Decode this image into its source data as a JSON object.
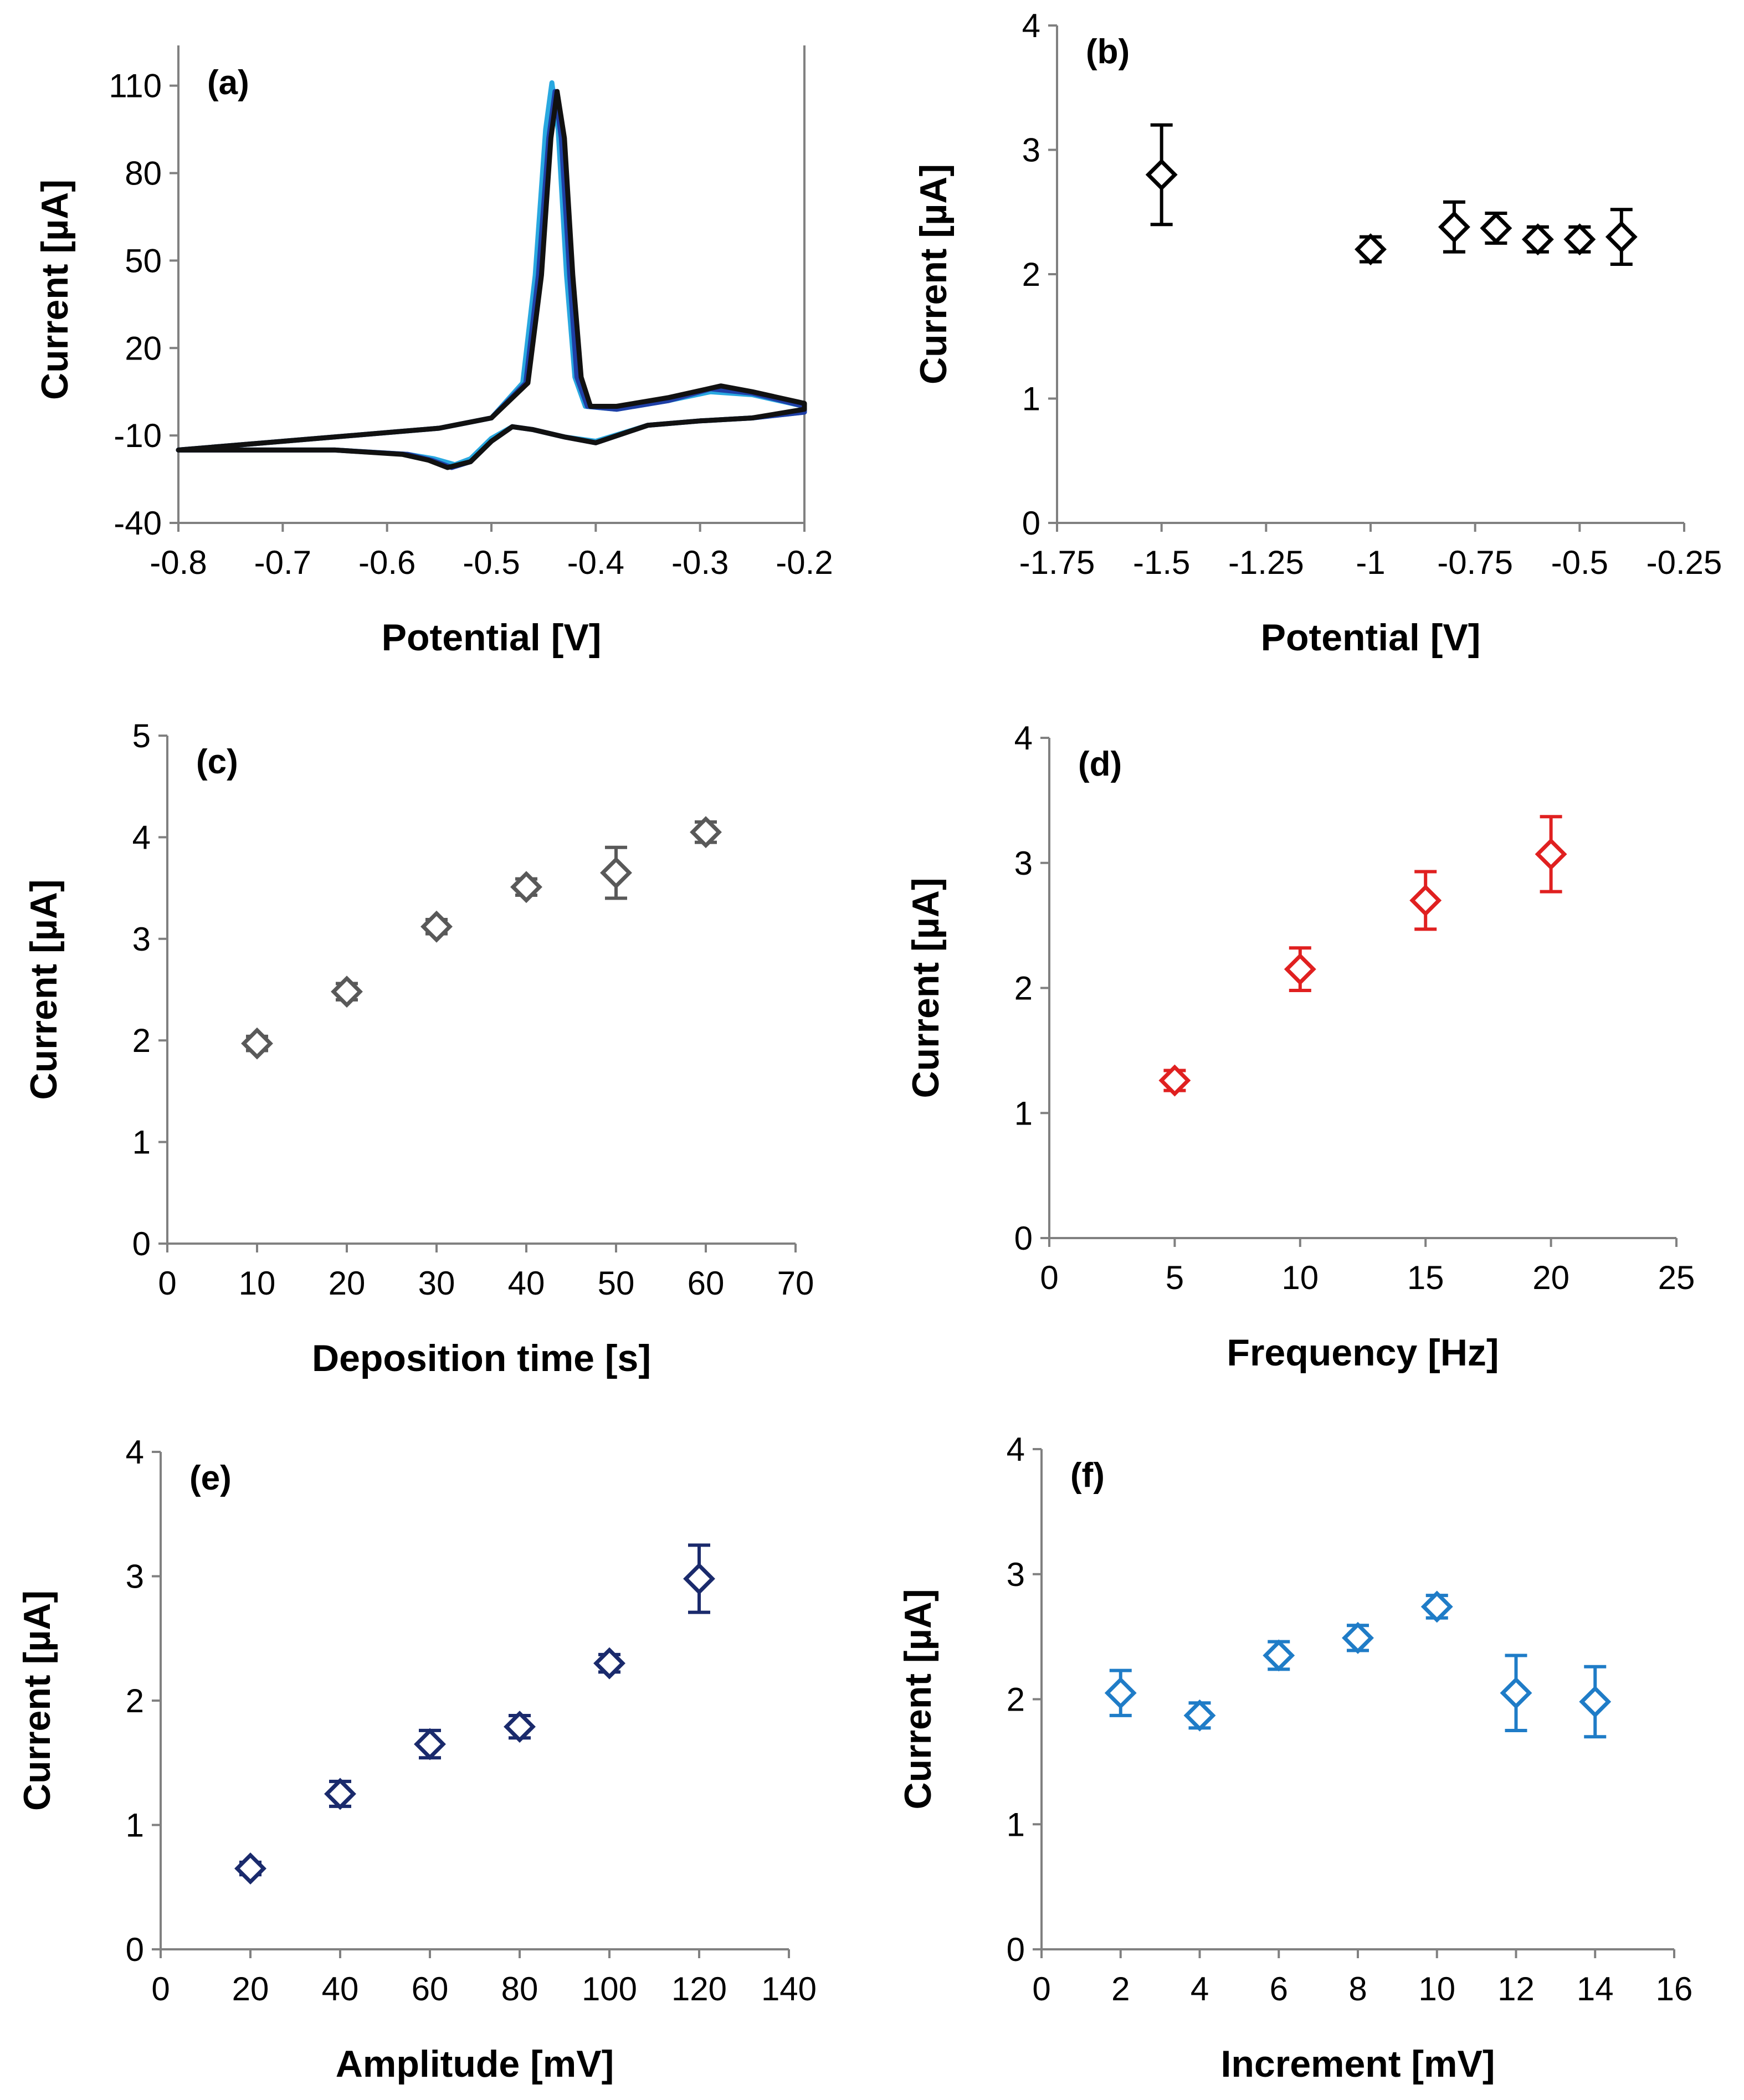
{
  "chart_data": [
    {
      "id": "a",
      "type": "line",
      "panel_label": "(a)",
      "xlabel": "Potential [V]",
      "ylabel": "Current [µA]",
      "xlim": [
        -0.8,
        -0.2
      ],
      "ylim": [
        -40,
        120
      ],
      "xticks": [
        -0.8,
        -0.7,
        -0.6,
        -0.5,
        -0.4,
        -0.3,
        -0.2
      ],
      "xtick_labels": [
        "-0.8",
        "-0.7",
        "-0.6",
        "-0.5",
        "-0.4",
        "-0.3",
        "-0.2"
      ],
      "yticks": [
        -40,
        -10,
        20,
        50,
        80,
        110
      ],
      "ytick_labels": [
        "-40",
        "-10",
        "20",
        "50",
        "80",
        "110"
      ],
      "series": [
        {
          "name": "scan-light-blue",
          "color": "#29a8e0",
          "points": [
            [
              -0.8,
              -15
            ],
            [
              -0.7,
              -12
            ],
            [
              -0.6,
              -9
            ],
            [
              -0.55,
              -7.5
            ],
            [
              -0.5,
              -4
            ],
            [
              -0.47,
              8
            ],
            [
              -0.458,
              45
            ],
            [
              -0.448,
              95
            ],
            [
              -0.442,
              111
            ],
            [
              -0.436,
              95
            ],
            [
              -0.428,
              45
            ],
            [
              -0.42,
              10
            ],
            [
              -0.41,
              0
            ],
            [
              -0.38,
              -1
            ],
            [
              -0.33,
              2
            ],
            [
              -0.29,
              5
            ],
            [
              -0.25,
              4
            ],
            [
              -0.2,
              0
            ],
            [
              -0.2,
              -2
            ],
            [
              -0.25,
              -4
            ],
            [
              -0.3,
              -5
            ],
            [
              -0.35,
              -6.5
            ],
            [
              -0.4,
              -12
            ],
            [
              -0.43,
              -10.5
            ],
            [
              -0.46,
              -8
            ],
            [
              -0.48,
              -7
            ],
            [
              -0.5,
              -11
            ],
            [
              -0.52,
              -18
            ],
            [
              -0.535,
              -20
            ],
            [
              -0.555,
              -18
            ],
            [
              -0.58,
              -16.5
            ],
            [
              -0.65,
              -15
            ],
            [
              -0.8,
              -15
            ]
          ]
        },
        {
          "name": "scan-dark-blue",
          "color": "#1f3fa6",
          "points": [
            [
              -0.8,
              -15
            ],
            [
              -0.7,
              -12
            ],
            [
              -0.6,
              -9
            ],
            [
              -0.55,
              -7.5
            ],
            [
              -0.5,
              -4
            ],
            [
              -0.467,
              8
            ],
            [
              -0.455,
              45
            ],
            [
              -0.445,
              92
            ],
            [
              -0.439,
              108
            ],
            [
              -0.433,
              92
            ],
            [
              -0.425,
              45
            ],
            [
              -0.418,
              10
            ],
            [
              -0.408,
              0
            ],
            [
              -0.38,
              -1
            ],
            [
              -0.33,
              2
            ],
            [
              -0.29,
              6
            ],
            [
              -0.25,
              4.5
            ],
            [
              -0.2,
              0
            ],
            [
              -0.2,
              -2
            ],
            [
              -0.25,
              -4
            ],
            [
              -0.3,
              -5
            ],
            [
              -0.35,
              -6.5
            ],
            [
              -0.4,
              -12.5
            ],
            [
              -0.43,
              -10.5
            ],
            [
              -0.46,
              -8
            ],
            [
              -0.48,
              -7
            ],
            [
              -0.5,
              -12
            ],
            [
              -0.52,
              -19
            ],
            [
              -0.538,
              -21
            ],
            [
              -0.557,
              -18.5
            ],
            [
              -0.58,
              -16.5
            ],
            [
              -0.65,
              -15
            ],
            [
              -0.8,
              -15
            ]
          ]
        },
        {
          "name": "scan-black",
          "color": "#111111",
          "points": [
            [
              -0.8,
              -15
            ],
            [
              -0.7,
              -12
            ],
            [
              -0.6,
              -9
            ],
            [
              -0.55,
              -7.5
            ],
            [
              -0.5,
              -4
            ],
            [
              -0.465,
              8
            ],
            [
              -0.452,
              45
            ],
            [
              -0.443,
              92
            ],
            [
              -0.437,
              108
            ],
            [
              -0.43,
              92
            ],
            [
              -0.422,
              45
            ],
            [
              -0.414,
              10
            ],
            [
              -0.405,
              0
            ],
            [
              -0.38,
              0
            ],
            [
              -0.33,
              3
            ],
            [
              -0.28,
              7
            ],
            [
              -0.25,
              5
            ],
            [
              -0.2,
              1
            ],
            [
              -0.2,
              -1
            ],
            [
              -0.25,
              -4
            ],
            [
              -0.3,
              -5
            ],
            [
              -0.35,
              -6.5
            ],
            [
              -0.4,
              -12.5
            ],
            [
              -0.43,
              -10.5
            ],
            [
              -0.46,
              -8
            ],
            [
              -0.48,
              -7
            ],
            [
              -0.5,
              -12
            ],
            [
              -0.52,
              -19
            ],
            [
              -0.542,
              -21
            ],
            [
              -0.56,
              -18.5
            ],
            [
              -0.585,
              -16.5
            ],
            [
              -0.65,
              -15
            ],
            [
              -0.8,
              -15
            ]
          ]
        }
      ]
    },
    {
      "id": "b",
      "type": "scatter",
      "panel_label": "(b)",
      "xlabel": "Potential [V]",
      "ylabel": "Current [µA]",
      "xlim": [
        -1.75,
        -0.25
      ],
      "ylim": [
        0,
        4
      ],
      "xticks": [
        -1.75,
        -1.5,
        -1.25,
        -1,
        -0.75,
        -0.5,
        -0.25
      ],
      "xtick_labels": [
        "-1.75",
        "-1.5",
        "-1.25",
        "-1",
        "-0.75",
        "-0.5",
        "-0.25"
      ],
      "yticks": [
        0,
        1,
        2,
        3,
        4
      ],
      "ytick_labels": [
        "0",
        "1",
        "2",
        "3",
        "4"
      ],
      "color": "#000000",
      "x": [
        -1.5,
        -1.0,
        -0.8,
        -0.7,
        -0.6,
        -0.5,
        -0.4
      ],
      "y": [
        2.8,
        2.2,
        2.38,
        2.37,
        2.28,
        2.28,
        2.3
      ],
      "err": [
        0.4,
        0.1,
        0.2,
        0.12,
        0.1,
        0.1,
        0.22
      ]
    },
    {
      "id": "c",
      "type": "scatter",
      "panel_label": "(c)",
      "xlabel": "Deposition time [s]",
      "ylabel": "Current [µA]",
      "xlim": [
        0,
        70
      ],
      "ylim": [
        0,
        5
      ],
      "xticks": [
        0,
        10,
        20,
        30,
        40,
        50,
        60,
        70
      ],
      "xtick_labels": [
        "0",
        "10",
        "20",
        "30",
        "40",
        "50",
        "60",
        "70"
      ],
      "yticks": [
        0,
        1,
        2,
        3,
        4,
        5
      ],
      "ytick_labels": [
        "0",
        "1",
        "2",
        "3",
        "4",
        "5"
      ],
      "color": "#595959",
      "x": [
        10,
        20,
        30,
        40,
        50,
        60
      ],
      "y": [
        1.97,
        2.48,
        3.12,
        3.51,
        3.65,
        4.05
      ],
      "err": [
        0.07,
        0.08,
        0.07,
        0.08,
        0.25,
        0.1
      ]
    },
    {
      "id": "d",
      "type": "scatter",
      "panel_label": "(d)",
      "xlabel": "Frequency [Hz]",
      "ylabel": "Current [µA]",
      "xlim": [
        0,
        25
      ],
      "ylim": [
        0,
        4
      ],
      "xticks": [
        0,
        5,
        10,
        15,
        20,
        25
      ],
      "xtick_labels": [
        "0",
        "5",
        "10",
        "15",
        "20",
        "25"
      ],
      "yticks": [
        0,
        1,
        2,
        3,
        4
      ],
      "ytick_labels": [
        "0",
        "1",
        "2",
        "3",
        "4"
      ],
      "color": "#e02020",
      "x": [
        5,
        10,
        15,
        20
      ],
      "y": [
        1.26,
        2.15,
        2.7,
        3.07
      ],
      "err": [
        0.08,
        0.17,
        0.23,
        0.3
      ]
    },
    {
      "id": "e",
      "type": "scatter",
      "panel_label": "(e)",
      "xlabel": "Amplitude [mV]",
      "ylabel": "Current [µA]",
      "xlim": [
        0,
        140
      ],
      "ylim": [
        0,
        4
      ],
      "xticks": [
        0,
        20,
        40,
        60,
        80,
        100,
        120,
        140
      ],
      "xtick_labels": [
        "0",
        "20",
        "40",
        "60",
        "80",
        "100",
        "120",
        "140"
      ],
      "yticks": [
        0,
        1,
        2,
        3,
        4
      ],
      "ytick_labels": [
        "0",
        "1",
        "2",
        "3",
        "4"
      ],
      "color": "#1a2a6c",
      "x": [
        20,
        40,
        60,
        80,
        100,
        120
      ],
      "y": [
        0.65,
        1.25,
        1.65,
        1.79,
        2.3,
        2.98
      ],
      "err": [
        0.05,
        0.1,
        0.11,
        0.09,
        0.07,
        0.27
      ]
    },
    {
      "id": "f",
      "type": "scatter",
      "panel_label": "(f)",
      "xlabel": "Increment [mV]",
      "ylabel": "Current [µA]",
      "xlim": [
        0,
        16
      ],
      "ylim": [
        0,
        4
      ],
      "xticks": [
        0,
        2,
        4,
        6,
        8,
        10,
        12,
        14,
        16
      ],
      "xtick_labels": [
        "0",
        "2",
        "4",
        "6",
        "8",
        "10",
        "12",
        "14",
        "16"
      ],
      "yticks": [
        0,
        1,
        2,
        3,
        4
      ],
      "ytick_labels": [
        "0",
        "1",
        "2",
        "3",
        "4"
      ],
      "color": "#1f7cc7",
      "x": [
        2,
        4,
        6,
        8,
        10,
        12,
        14
      ],
      "y": [
        2.05,
        1.87,
        2.35,
        2.49,
        2.74,
        2.05,
        1.98
      ],
      "err": [
        0.18,
        0.1,
        0.11,
        0.1,
        0.09,
        0.3,
        0.28
      ]
    }
  ]
}
